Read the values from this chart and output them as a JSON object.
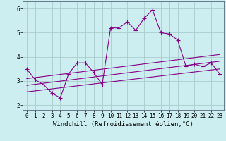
{
  "background_color": "#cceef0",
  "grid_color": "#aacccc",
  "line_color": "#880088",
  "marker": "+",
  "markersize": 4,
  "linewidth": 0.8,
  "xlabel": "Windchill (Refroidissement éolien,°C)",
  "xlabel_fontsize": 6.5,
  "tick_fontsize": 5.5,
  "xlim": [
    -0.5,
    23.5
  ],
  "ylim": [
    1.8,
    6.3
  ],
  "yticks": [
    2,
    3,
    4,
    5,
    6
  ],
  "xticks": [
    0,
    1,
    2,
    3,
    4,
    5,
    6,
    7,
    8,
    9,
    10,
    11,
    12,
    13,
    14,
    15,
    16,
    17,
    18,
    19,
    20,
    21,
    22,
    23
  ],
  "series1_x": [
    0,
    1,
    2,
    3,
    4,
    5,
    6,
    7,
    8,
    9,
    10,
    11,
    12,
    13,
    14,
    15,
    16,
    17,
    18,
    19,
    20,
    21,
    22,
    23
  ],
  "series1_y": [
    3.5,
    3.05,
    2.85,
    2.5,
    2.3,
    3.3,
    3.75,
    3.75,
    3.35,
    2.85,
    5.2,
    5.2,
    5.45,
    5.1,
    5.6,
    5.95,
    5.0,
    4.95,
    4.7,
    3.6,
    3.7,
    3.6,
    3.75,
    3.3
  ],
  "series2_x": [
    0,
    23
  ],
  "series2_y": [
    2.55,
    3.5
  ],
  "series3_x": [
    0,
    23
  ],
  "series3_y": [
    2.82,
    3.82
  ],
  "series4_x": [
    0,
    23
  ],
  "series4_y": [
    3.1,
    4.1
  ]
}
